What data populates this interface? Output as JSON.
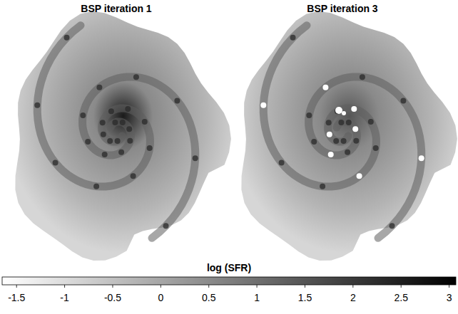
{
  "chart_data": {
    "type": "image",
    "panels": [
      {
        "title": "BSP iteration 1"
      },
      {
        "title": "BSP iteration 3"
      }
    ],
    "colorbar": {
      "label": "log (SFR)",
      "range": [
        -1.65,
        3.07
      ],
      "ticks": [
        -1.5,
        -1,
        -0.5,
        0,
        0.5,
        1,
        1.5,
        2,
        2.5,
        3
      ]
    }
  }
}
